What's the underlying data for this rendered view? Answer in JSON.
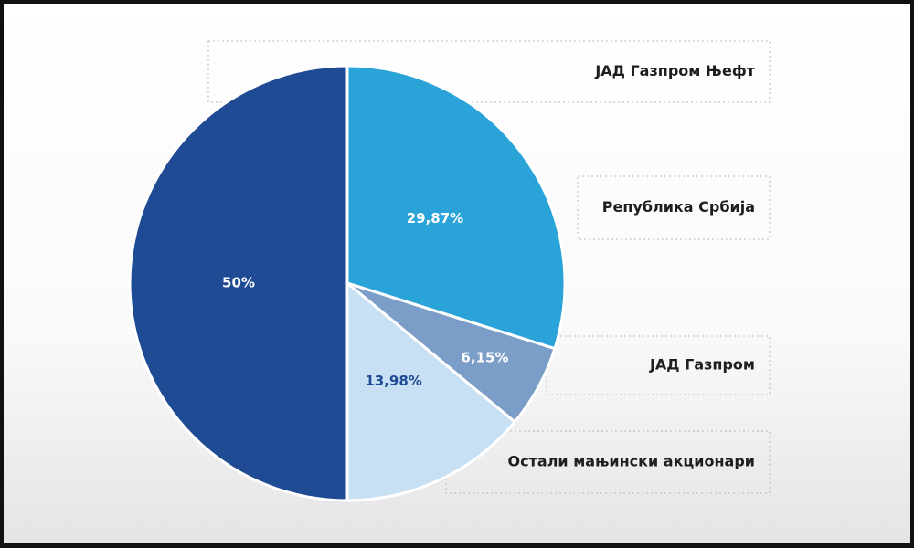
{
  "chart_data": {
    "type": "pie",
    "categories": [
      "ЈАД Газпром Њефт",
      "Република Србија",
      "ЈАД Газпром",
      "Остали мањински акционари"
    ],
    "values": [
      50,
      29.87,
      6.15,
      13.98
    ],
    "value_labels": [
      "50%",
      "29,87%",
      "6,15%",
      "13,98%"
    ],
    "colors": [
      "#1f4a94",
      "#2aa3d8",
      "#7a9ec8",
      "#c8e0f4"
    ]
  }
}
